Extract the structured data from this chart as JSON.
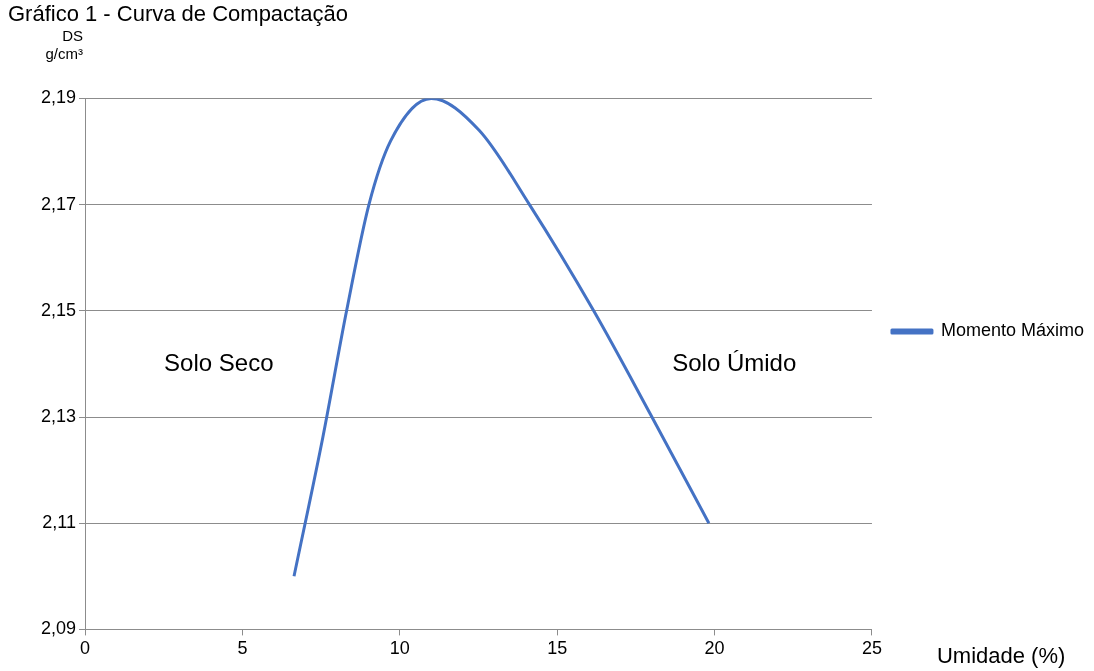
{
  "chart_data": {
    "type": "line",
    "title": "Gráfico 1 - Curva de Compactação",
    "xlabel": "Umidade (%)",
    "ylabel": "DS g/cm³",
    "x": [
      6.64,
      7.55,
      8.31,
      9.02,
      9.71,
      11.0,
      12.52,
      14.12,
      16.16,
      18.01,
      19.82
    ],
    "series": [
      {
        "name": "Momento Máximo",
        "color": "#4472c4",
        "values": [
          2.1,
          2.126,
          2.15,
          2.17,
          2.182,
          2.19,
          2.184,
          2.17,
          2.15,
          2.13,
          2.11
        ]
      }
    ],
    "xlim": [
      0,
      25
    ],
    "xticks": [
      0,
      5,
      10,
      15,
      20,
      25
    ],
    "ylim": [
      2.09,
      2.19
    ],
    "yticks": [
      {
        "value": 2.09,
        "label": "2,09"
      },
      {
        "value": 2.11,
        "label": "2,11"
      },
      {
        "value": 2.13,
        "label": "2,13"
      },
      {
        "value": 2.15,
        "label": "2,15"
      },
      {
        "value": 2.17,
        "label": "2,17"
      },
      {
        "value": 2.19,
        "label": "2,19"
      }
    ],
    "annotations": [
      "Solo Seco",
      "Solo Úmido"
    ],
    "grid": "y",
    "legend": "right",
    "marker": "none",
    "line_style": "solid"
  }
}
